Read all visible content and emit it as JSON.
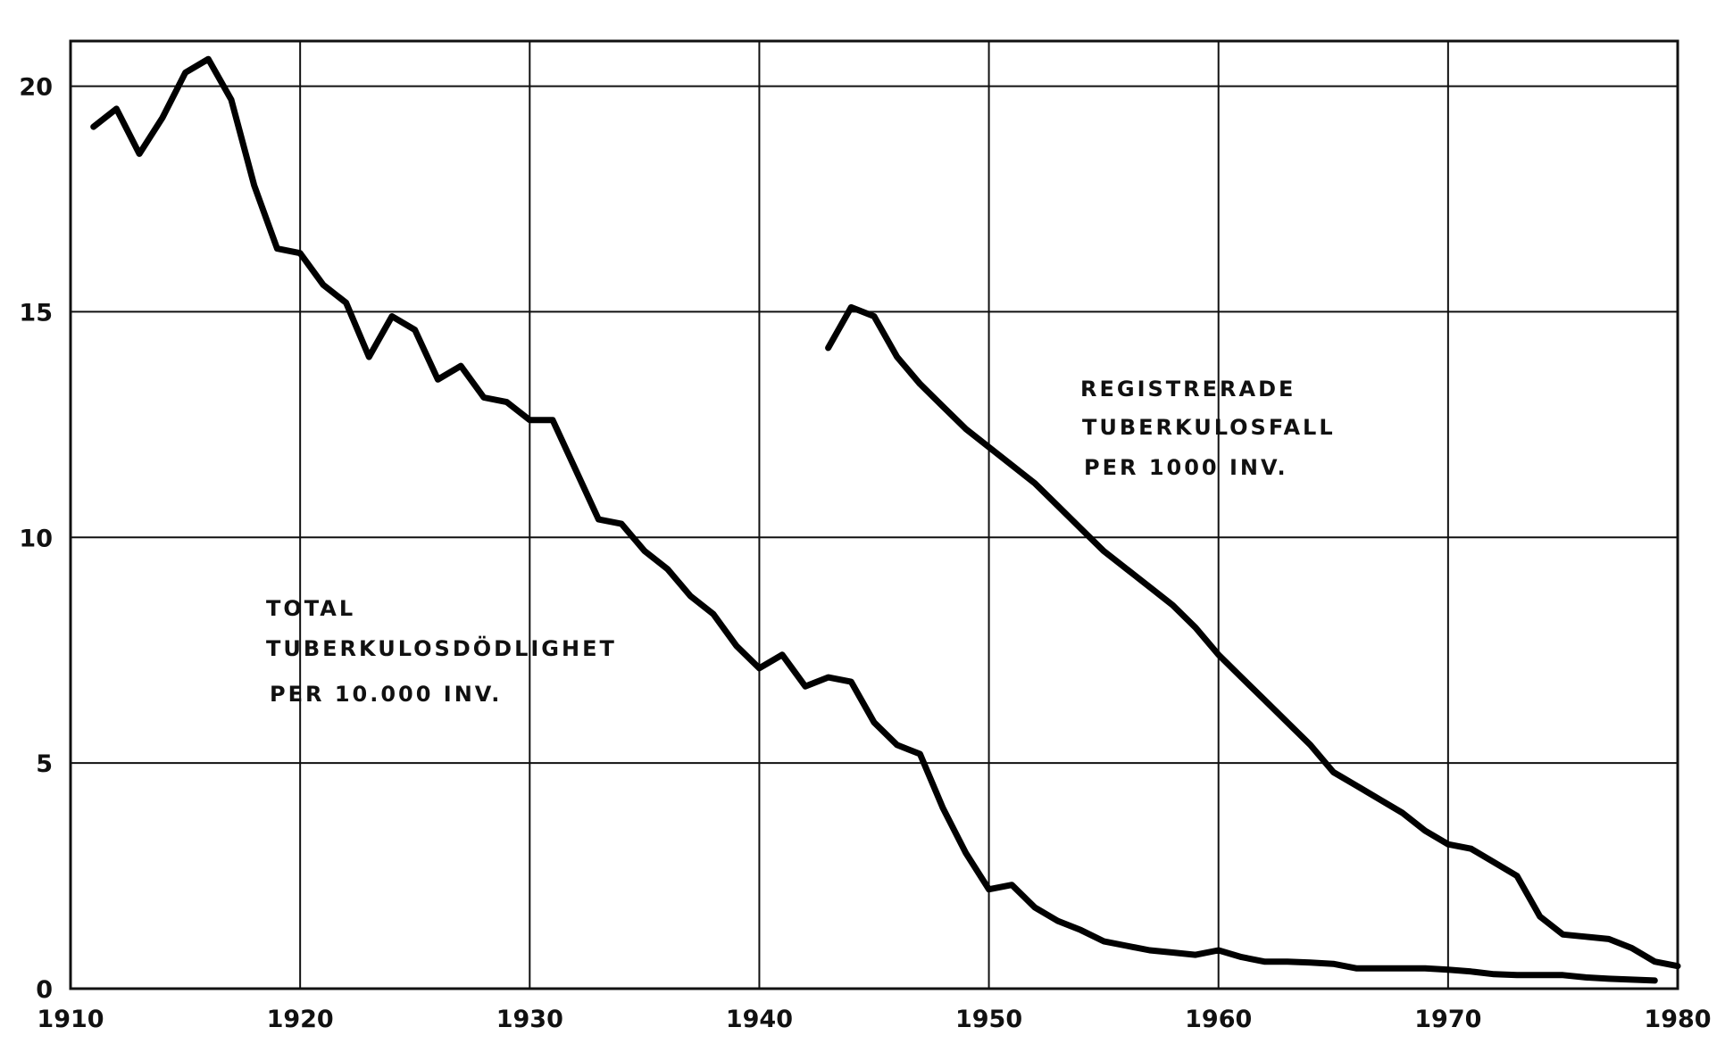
{
  "chart_data": {
    "type": "line",
    "title": "",
    "xlabel": "",
    "ylabel": "",
    "xlim": [
      1910,
      1980
    ],
    "ylim": [
      0,
      21
    ],
    "x_ticks": [
      "1910",
      "1920",
      "1930",
      "1940",
      "1950",
      "1960",
      "1970",
      "1980"
    ],
    "y_ticks": [
      "0",
      "5",
      "10",
      "15",
      "20"
    ],
    "grid": true,
    "series": [
      {
        "x": [
          1911,
          1912,
          1913,
          1914,
          1915,
          1916,
          1917,
          1918,
          1919,
          1920,
          1921,
          1922,
          1923,
          1924,
          1925,
          1926,
          1927,
          1928,
          1929,
          1930,
          1931,
          1932,
          1933,
          1934,
          1935,
          1936,
          1937,
          1938,
          1939,
          1940,
          1941,
          1942,
          1943,
          1944,
          1945,
          1946,
          1947,
          1948,
          1949,
          1950,
          1951,
          1952,
          1953,
          1954,
          1955,
          1956,
          1957,
          1958,
          1959,
          1960,
          1961,
          1962,
          1963,
          1964,
          1965,
          1966,
          1967,
          1968,
          1969,
          1970,
          1971,
          1972,
          1973,
          1974,
          1975,
          1976,
          1977,
          1978,
          1979
        ],
        "values": [
          19.1,
          19.5,
          18.5,
          19.3,
          20.3,
          20.6,
          19.7,
          17.8,
          16.4,
          16.3,
          15.6,
          15.2,
          14.0,
          14.9,
          14.6,
          13.5,
          13.8,
          13.1,
          13.0,
          12.6,
          12.6,
          11.5,
          10.4,
          10.3,
          9.7,
          9.3,
          8.7,
          8.3,
          7.6,
          7.1,
          7.4,
          6.7,
          6.9,
          6.8,
          5.9,
          5.4,
          5.2,
          4.0,
          3.0,
          2.2,
          2.3,
          1.8,
          1.5,
          1.3,
          1.05,
          0.95,
          0.85,
          0.8,
          0.75,
          0.85,
          0.7,
          0.6,
          0.6,
          0.58,
          0.55,
          0.45,
          0.45,
          0.45,
          0.45,
          0.42,
          0.38,
          0.32,
          0.3,
          0.3,
          0.3,
          0.25,
          0.22,
          0.2,
          0.18
        ]
      },
      {
        "x": [
          1943,
          1944,
          1945,
          1946,
          1947,
          1948,
          1949,
          1950,
          1951,
          1952,
          1953,
          1954,
          1955,
          1956,
          1957,
          1958,
          1959,
          1960,
          1961,
          1962,
          1963,
          1964,
          1965,
          1966,
          1967,
          1968,
          1969,
          1970,
          1971,
          1972,
          1973,
          1974,
          1975,
          1976,
          1977,
          1978,
          1979,
          1980
        ],
        "values": [
          14.2,
          15.1,
          14.9,
          14.0,
          13.4,
          12.9,
          12.4,
          12.0,
          11.6,
          11.2,
          10.7,
          10.2,
          9.7,
          9.3,
          8.9,
          8.5,
          8.0,
          7.4,
          6.9,
          6.4,
          5.9,
          5.4,
          4.8,
          4.5,
          4.2,
          3.9,
          3.5,
          3.2,
          3.1,
          2.8,
          2.5,
          1.6,
          1.2,
          1.15,
          1.1,
          0.9,
          0.6,
          0.5
        ]
      }
    ],
    "annotations": [
      {
        "lines": [
          "TOTAL",
          "TUBERKULOSDÖDLIGHET",
          "PER 10.000  INV."
        ]
      },
      {
        "lines": [
          "REGISTRERADE",
          "TUBERKULOSFALL",
          "PER 1000 INV."
        ]
      }
    ]
  }
}
